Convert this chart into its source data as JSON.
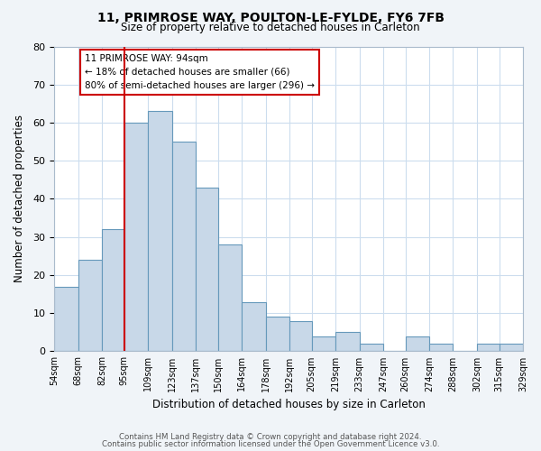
{
  "title": "11, PRIMROSE WAY, POULTON-LE-FYLDE, FY6 7FB",
  "subtitle": "Size of property relative to detached houses in Carleton",
  "xlabel": "Distribution of detached houses by size in Carleton",
  "ylabel": "Number of detached properties",
  "bar_color": "#c8d8e8",
  "bar_edge_color": "#6699bb",
  "bins": [
    54,
    68,
    82,
    95,
    109,
    123,
    137,
    150,
    164,
    178,
    192,
    205,
    219,
    233,
    247,
    260,
    274,
    288,
    302,
    315,
    329
  ],
  "bin_labels": [
    "54sqm",
    "68sqm",
    "82sqm",
    "95sqm",
    "109sqm",
    "123sqm",
    "137sqm",
    "150sqm",
    "164sqm",
    "178sqm",
    "192sqm",
    "205sqm",
    "219sqm",
    "233sqm",
    "247sqm",
    "260sqm",
    "274sqm",
    "288sqm",
    "302sqm",
    "315sqm",
    "329sqm"
  ],
  "values": [
    17,
    24,
    32,
    60,
    63,
    55,
    43,
    28,
    13,
    9,
    8,
    4,
    5,
    2,
    0,
    4,
    2,
    0,
    2,
    2
  ],
  "ylim": [
    0,
    80
  ],
  "yticks": [
    0,
    10,
    20,
    30,
    40,
    50,
    60,
    70,
    80
  ],
  "vline_x": 95,
  "vline_color": "#cc0000",
  "annotation_line1": "11 PRIMROSE WAY: 94sqm",
  "annotation_line2": "← 18% of detached houses are smaller (66)",
  "annotation_line3": "80% of semi-detached houses are larger (296) →",
  "annotation_box_color": "#ffffff",
  "annotation_box_edge": "#cc0000",
  "footer1": "Contains HM Land Registry data © Crown copyright and database right 2024.",
  "footer2": "Contains public sector information licensed under the Open Government Licence v3.0.",
  "bg_color": "#f0f4f8",
  "plot_bg_color": "#ffffff",
  "grid_color": "#ccddee"
}
